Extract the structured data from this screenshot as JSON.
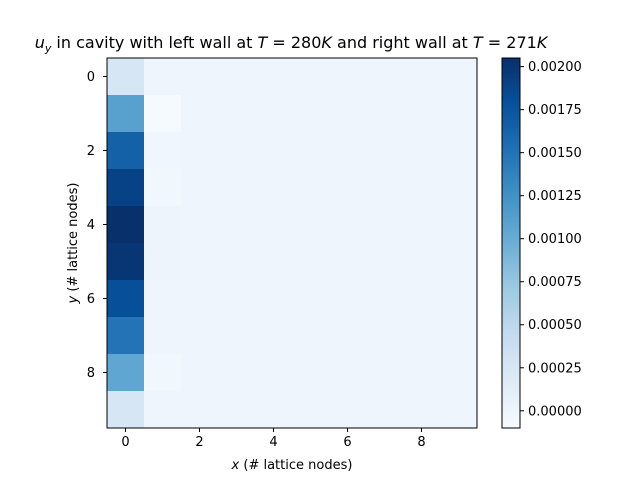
{
  "chart_data": {
    "type": "heatmap",
    "title_parts": [
      "u",
      "y",
      " in cavity with left wall at ",
      "T",
      " = 280",
      "K",
      " and right wall at ",
      "T",
      " = 271",
      "K"
    ],
    "xlabel_var": "x",
    "xlabel_text": " (# lattice nodes)",
    "ylabel_var": "y",
    "ylabel_text": " (# lattice nodes)",
    "x_ticks": [
      "0",
      "2",
      "4",
      "6",
      "8"
    ],
    "y_ticks": [
      "0",
      "2",
      "4",
      "6",
      "8"
    ],
    "x_range": [
      -0.5,
      9.5
    ],
    "y_range": [
      -0.5,
      9.5
    ],
    "y_inverted": true,
    "colormap": "Blues",
    "vmin": -0.0001,
    "vmax": 0.00205,
    "colorbar_ticks": [
      "0.00000",
      "0.00025",
      "0.00050",
      "0.00075",
      "0.00100",
      "0.00125",
      "0.00150",
      "0.00175",
      "0.00200"
    ],
    "colorbar_tick_values": [
      0,
      0.00025,
      0.0005,
      0.00075,
      0.001,
      0.00125,
      0.0015,
      0.00175,
      0.002
    ],
    "grid": [
      [
        0.00025,
        0.0,
        0.0,
        0.0,
        0.0,
        0.0,
        0.0,
        0.0,
        0.0,
        0.0
      ],
      [
        0.0011,
        -8e-05,
        0.0,
        0.0,
        0.0,
        0.0,
        0.0,
        0.0,
        0.0,
        0.0
      ],
      [
        0.00165,
        -2e-05,
        0.0,
        0.0,
        0.0,
        0.0,
        0.0,
        0.0,
        0.0,
        0.0
      ],
      [
        0.0019,
        -3e-05,
        0.0,
        0.0,
        0.0,
        0.0,
        0.0,
        0.0,
        0.0,
        0.0
      ],
      [
        0.00205,
        1e-05,
        0.0,
        0.0,
        0.0,
        0.0,
        0.0,
        0.0,
        0.0,
        0.0
      ],
      [
        0.002,
        1e-05,
        0.0,
        0.0,
        0.0,
        0.0,
        0.0,
        0.0,
        0.0,
        0.0
      ],
      [
        0.0018,
        0.0,
        0.0,
        0.0,
        0.0,
        0.0,
        0.0,
        0.0,
        0.0,
        0.0
      ],
      [
        0.0015,
        0.0,
        0.0,
        0.0,
        0.0,
        0.0,
        0.0,
        0.0,
        0.0,
        0.0
      ],
      [
        0.00105,
        -3e-05,
        0.0,
        0.0,
        0.0,
        0.0,
        0.0,
        0.0,
        0.0,
        0.0
      ],
      [
        0.00025,
        0.0,
        0.0,
        0.0,
        0.0,
        0.0,
        0.0,
        0.0,
        0.0,
        0.0
      ]
    ]
  }
}
